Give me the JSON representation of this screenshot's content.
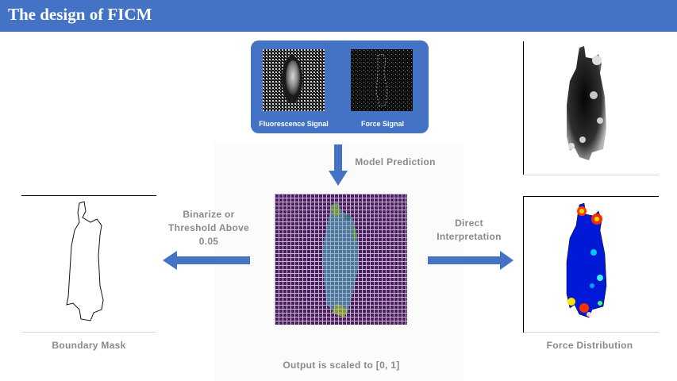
{
  "header": {
    "title": "The design of FICM"
  },
  "input": {
    "fluorescence_label": "Fluorescence Signal",
    "force_label": "Force Signal"
  },
  "arrows": {
    "model_prediction": "Model Prediction",
    "binarize": "Binarize or Threshold Above 0.05",
    "direct": "Direct Interpretation"
  },
  "outputs": {
    "scaled_caption": "Output is scaled to [0, 1]",
    "boundary_caption": "Boundary Mask",
    "force_caption": "Force Distribution"
  },
  "colors": {
    "accent": "#4472c4",
    "grid_background": "#4b1f5e",
    "jet_blue": "#0019d6",
    "label_gray": "#8a8a8a"
  }
}
